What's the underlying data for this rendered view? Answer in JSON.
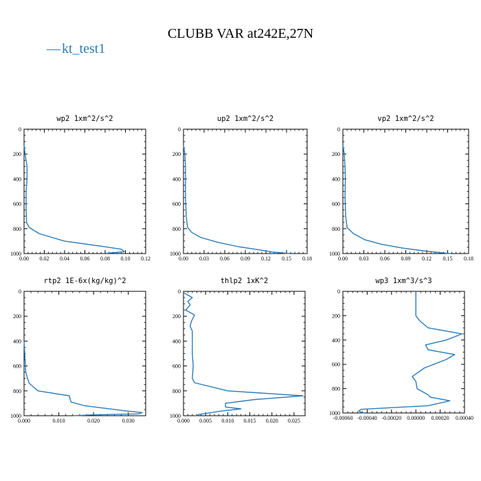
{
  "figure": {
    "title": "CLUBB VAR at242E,27N",
    "legend_label": "kt_test1",
    "legend_symbol": "—",
    "series_color": "#2b7bb9"
  },
  "chart_data": [
    {
      "type": "line",
      "title": "wp2  1xm^2/s^2",
      "xlim": [
        0,
        0.12
      ],
      "xticks": [
        0,
        0.02,
        0.04,
        0.06,
        0.08,
        0.1,
        0.12
      ],
      "xticklabels": [
        "0.00",
        "0.02",
        "0.04",
        "0.06",
        "0.08",
        "0.10",
        "0.12"
      ],
      "ylim": [
        1000,
        0
      ],
      "y_inverted": true,
      "yticks": [
        0,
        200,
        400,
        600,
        800,
        1000
      ],
      "yticklabels": [
        "0",
        "200",
        "400",
        "600",
        "800",
        "1000"
      ],
      "x": [
        0.0,
        0.001,
        0.003,
        0.003,
        0.002,
        0.002,
        0.0025,
        0.005,
        0.015,
        0.04,
        0.075,
        0.096,
        0.099,
        0.081
      ],
      "y": [
        130,
        200,
        300,
        400,
        500,
        650,
        750,
        790,
        840,
        900,
        940,
        965,
        985,
        998
      ]
    },
    {
      "type": "line",
      "title": "up2  1xm^2/s^2",
      "xlim": [
        0,
        0.18
      ],
      "xticks": [
        0,
        0.03,
        0.06,
        0.09,
        0.12,
        0.15,
        0.18
      ],
      "xticklabels": [
        "0.00",
        "0.03",
        "0.06",
        "0.09",
        "0.12",
        "0.15",
        "0.18"
      ],
      "ylim": [
        1000,
        0
      ],
      "y_inverted": true,
      "yticks": [
        0,
        200,
        400,
        600,
        800,
        1000
      ],
      "yticklabels": [
        "0",
        "200",
        "400",
        "600",
        "800",
        "1000"
      ],
      "x": [
        0.0,
        0.002,
        0.003,
        0.003,
        0.003,
        0.004,
        0.006,
        0.012,
        0.025,
        0.05,
        0.08,
        0.11,
        0.13,
        0.155
      ],
      "y": [
        130,
        200,
        300,
        400,
        550,
        700,
        790,
        830,
        870,
        910,
        945,
        970,
        988,
        1000
      ]
    },
    {
      "type": "line",
      "title": "vp2  1xm^2/s^2",
      "xlim": [
        0,
        0.18
      ],
      "xticks": [
        0,
        0.03,
        0.06,
        0.09,
        0.12,
        0.15,
        0.18
      ],
      "xticklabels": [
        "0.00",
        "0.03",
        "0.06",
        "0.09",
        "0.12",
        "0.15",
        "0.18"
      ],
      "ylim": [
        1000,
        0
      ],
      "y_inverted": true,
      "yticks": [
        0,
        200,
        400,
        600,
        800,
        1000
      ],
      "yticklabels": [
        "0",
        "200",
        "400",
        "600",
        "800",
        "1000"
      ],
      "x": [
        0.0,
        0.002,
        0.003,
        0.0035,
        0.003,
        0.004,
        0.006,
        0.015,
        0.032,
        0.055,
        0.085,
        0.115,
        0.14,
        0.155
      ],
      "y": [
        130,
        200,
        300,
        400,
        550,
        700,
        790,
        840,
        890,
        925,
        955,
        978,
        993,
        1000
      ]
    },
    {
      "type": "line",
      "title": "rtp2  1E-6x(kg/kg)^2",
      "xlim": [
        0,
        0.035
      ],
      "xticks": [
        0,
        0.01,
        0.02,
        0.03
      ],
      "xticklabels": [
        "0.000",
        "0.010",
        "0.020",
        "0.030"
      ],
      "ylim": [
        1000,
        0
      ],
      "y_inverted": true,
      "yticks": [
        0,
        200,
        400,
        600,
        800,
        1000
      ],
      "yticklabels": [
        "0",
        "200",
        "400",
        "600",
        "800",
        "1000"
      ],
      "x": [
        0.0,
        0.0003,
        0.0005,
        0.001,
        0.0015,
        0.004,
        0.013,
        0.0135,
        0.0175,
        0.029,
        0.034,
        0.033,
        0.02,
        0.014
      ],
      "y": [
        400,
        550,
        650,
        700,
        740,
        800,
        840,
        890,
        920,
        960,
        975,
        985,
        993,
        1000
      ]
    },
    {
      "type": "line",
      "title": "thlp2  1xK^2",
      "xlim": [
        0,
        0.0275
      ],
      "xticks": [
        0,
        0.005,
        0.01,
        0.015,
        0.02,
        0.025
      ],
      "xticklabels": [
        "0.000",
        "0.005",
        "0.010",
        "0.015",
        "0.020",
        "0.025"
      ],
      "ylim": [
        1000,
        0
      ],
      "y_inverted": true,
      "yticks": [
        0,
        200,
        400,
        600,
        800,
        1000
      ],
      "yticklabels": [
        "0",
        "200",
        "400",
        "600",
        "800",
        "1000"
      ],
      "x": [
        0.0,
        0.001,
        0.002,
        0.001,
        0.0015,
        0.0005,
        0.0025,
        0.0018,
        0.0015,
        0.002,
        0.002,
        0.002,
        0.0022,
        0.002,
        0.0025,
        0.01,
        0.027,
        0.016,
        0.0095,
        0.0095,
        0.013,
        0.009,
        0.0035,
        0.003
      ],
      "y": [
        10,
        30,
        50,
        80,
        110,
        150,
        190,
        240,
        280,
        320,
        400,
        500,
        600,
        700,
        735,
        800,
        840,
        870,
        900,
        930,
        945,
        960,
        990,
        1000
      ]
    },
    {
      "type": "line",
      "title": "wp3  1xm^3/s^3",
      "xlim": [
        -0.0006,
        0.0004
      ],
      "xticks": [
        -0.0006,
        -0.0004,
        -0.0002,
        0,
        0.0002,
        0.0004
      ],
      "xticklabels": [
        "-0.00060",
        "-0.00040",
        "-0.00020",
        "0.00000",
        "0.00020",
        "0.00040"
      ],
      "ylim": [
        1000,
        0
      ],
      "y_inverted": true,
      "yticks": [
        0,
        200,
        400,
        600,
        800,
        1000
      ],
      "yticklabels": [
        "0",
        "200",
        "400",
        "600",
        "800",
        "1000"
      ],
      "x": [
        0.0,
        0.0,
        0.0,
        3e-05,
        0.0001,
        0.00038,
        0.00025,
        8e-05,
        0.0001,
        0.00032,
        0.00025,
        7e-05,
        -3e-05,
        0.0,
        1e-05,
        0.0001,
        0.00012,
        0.00028,
        0.0001,
        -0.00045,
        -0.00047,
        -0.00043
      ],
      "y": [
        0,
        100,
        200,
        240,
        300,
        350,
        400,
        440,
        480,
        520,
        560,
        630,
        700,
        740,
        800,
        850,
        870,
        900,
        940,
        970,
        985,
        1000
      ]
    }
  ]
}
